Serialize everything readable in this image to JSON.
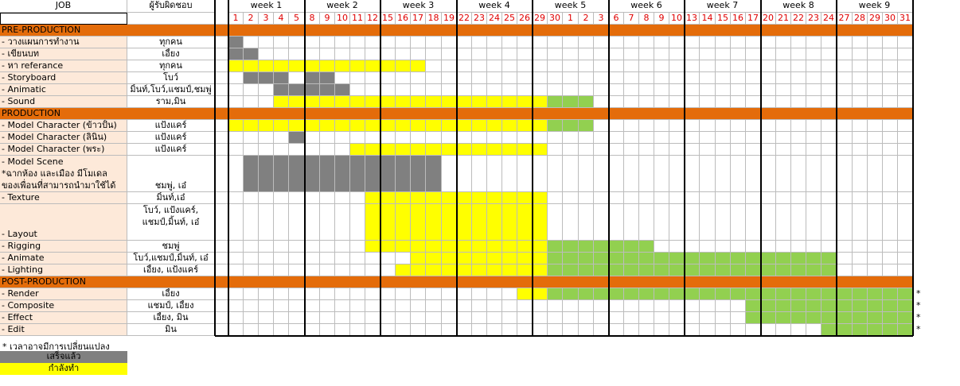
{
  "header": {
    "job_label": "JOB",
    "resp_label": "ผู้รับผิดชอบ",
    "weeks": [
      "week 1",
      "week 2",
      "week 3",
      "week 4",
      "week 5",
      "week 6",
      "week 7",
      "week 8",
      "week 9"
    ],
    "days": [
      "1",
      "2",
      "3",
      "4",
      "5",
      "8",
      "9",
      "10",
      "11",
      "12",
      "15",
      "16",
      "17",
      "18",
      "19",
      "22",
      "23",
      "24",
      "25",
      "26",
      "29",
      "30",
      "1",
      "2",
      "3",
      "6",
      "7",
      "8",
      "9",
      "10",
      "13",
      "14",
      "15",
      "16",
      "17",
      "20",
      "21",
      "22",
      "23",
      "24",
      "27",
      "28",
      "29",
      "30",
      "31"
    ]
  },
  "colors": {
    "section": "#e46c0a",
    "job_bg": "#fde9d9",
    "done": "#808080",
    "progress": "#ffff00",
    "green": "#92d050"
  },
  "rows": [
    {
      "type": "section",
      "label": "PRE-PRODUCTION"
    },
    {
      "type": "task",
      "job": " - วางแผนการทำงาน",
      "resp": "ทุกคน",
      "cells": [
        [
          1,
          1,
          "done"
        ]
      ]
    },
    {
      "type": "task",
      "job": " - เขียนบท",
      "resp": "เอี้ยง",
      "cells": [
        [
          1,
          2,
          "done"
        ]
      ]
    },
    {
      "type": "task",
      "job": " - หา referance",
      "resp": "ทุกคน",
      "cells": [
        [
          1,
          13,
          "progress"
        ]
      ]
    },
    {
      "type": "task",
      "job": " - Storyboard",
      "resp": "โบว์",
      "cells": [
        [
          2,
          4,
          "done"
        ],
        [
          6,
          7,
          "done"
        ]
      ]
    },
    {
      "type": "task",
      "job": " - Animatic",
      "resp": "มิ้นท์,โบว์,แชมป์,ชมพู่",
      "cells": [
        [
          4,
          8,
          "done"
        ]
      ]
    },
    {
      "type": "task",
      "job": " - Sound",
      "resp": "ราม,มิน",
      "cells": [
        [
          4,
          21,
          "progress"
        ],
        [
          22,
          24,
          "green"
        ]
      ]
    },
    {
      "type": "section",
      "label": "PRODUCTION"
    },
    {
      "type": "task",
      "job": " - Model Character (ข้าวปั้น)",
      "resp": "แป้งแคร์",
      "cells": [
        [
          1,
          21,
          "progress"
        ],
        [
          22,
          24,
          "green"
        ]
      ]
    },
    {
      "type": "task",
      "job": " - Model Character (ลินิน)",
      "resp": "แป้งแคร์",
      "cells": [
        [
          5,
          5,
          "done"
        ]
      ]
    },
    {
      "type": "task",
      "job": " - Model Character (พระ)",
      "resp": "แป้งแคร์",
      "cells": [
        [
          9,
          21,
          "progress"
        ]
      ]
    },
    {
      "type": "tall",
      "job": [
        " - Model Scene",
        "*ฉากห้อง และเมือง มีโมเดล",
        "ของเพื่อนที่สามารถนำมาใช้ได้"
      ],
      "resp": [
        "",
        "",
        "ชมพู่, เอ๋"
      ],
      "cells": [
        [
          2,
          14,
          "done"
        ]
      ]
    },
    {
      "type": "task",
      "job": " - Texture",
      "resp": "มิ้นท์,เอ๋",
      "cells": [
        [
          10,
          21,
          "progress"
        ]
      ]
    },
    {
      "type": "tall2",
      "job": [
        "",
        "",
        " - Layout"
      ],
      "resp": [
        "โบว์, แป้งแคร์,",
        "แชมป์,มิ้นท์, เอ๋"
      ],
      "cells": [
        [
          10,
          21,
          "progress"
        ]
      ]
    },
    {
      "type": "task",
      "job": " - Rigging",
      "resp": "ชมพู่",
      "cells": [
        [
          10,
          21,
          "progress"
        ],
        [
          22,
          28,
          "green"
        ]
      ]
    },
    {
      "type": "task",
      "job": " - Animate",
      "resp": "โบว์,แชมป์,มิ้นท์, เอ๋",
      "cells": [
        [
          13,
          21,
          "progress"
        ],
        [
          22,
          40,
          "green"
        ]
      ]
    },
    {
      "type": "task",
      "job": " - Lighting",
      "resp": "เอี้ยง, แป้งแคร์",
      "cells": [
        [
          12,
          21,
          "progress"
        ],
        [
          22,
          40,
          "green"
        ]
      ]
    },
    {
      "type": "section",
      "label": "POST-PRODUCTION"
    },
    {
      "type": "task",
      "job": " - Render",
      "resp": "เอี้ยง",
      "cells": [
        [
          20,
          21,
          "progress"
        ],
        [
          22,
          45,
          "green"
        ]
      ],
      "star": "*"
    },
    {
      "type": "task",
      "job": " - Composite",
      "resp": "แชมป์, เอี้ยง",
      "cells": [
        [
          35,
          45,
          "green"
        ]
      ],
      "star": "*"
    },
    {
      "type": "task",
      "job": " - Effect",
      "resp": "เอี้ยง, มิน",
      "cells": [
        [
          35,
          45,
          "green"
        ]
      ],
      "star": "*"
    },
    {
      "type": "task",
      "job": " - Edit",
      "resp": "มิน",
      "cells": [
        [
          40,
          45,
          "green"
        ]
      ],
      "star": "*"
    }
  ],
  "footer": {
    "note": "* เวลาอาจมีการเปลี่ยนแปลง",
    "legend_done": "เสร็จแล้ว",
    "legend_progress": "กำลังทำ"
  }
}
